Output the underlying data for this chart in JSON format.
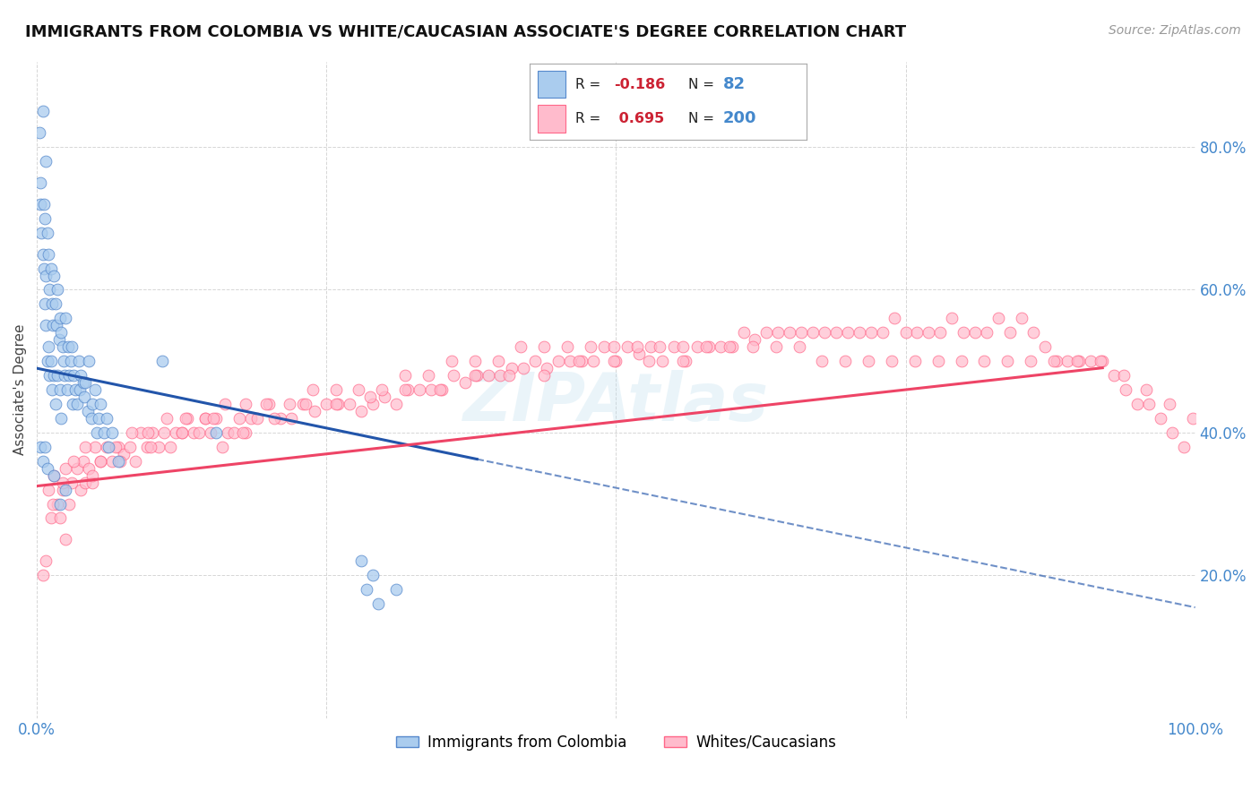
{
  "title": "IMMIGRANTS FROM COLOMBIA VS WHITE/CAUCASIAN ASSOCIATE'S DEGREE CORRELATION CHART",
  "source": "Source: ZipAtlas.com",
  "ylabel": "Associate's Degree",
  "watermark": "ZIPAtlas",
  "blue_color": "#5588CC",
  "blue_fill": "#AACCEE",
  "pink_color": "#FF6688",
  "pink_fill": "#FFBBCC",
  "trend_blue": "#2255AA",
  "trend_pink": "#EE4466",
  "r_blue": -0.186,
  "r_pink": 0.695,
  "n_blue": 82,
  "n_pink": 200,
  "blue_scatter_x": [
    0.002,
    0.003,
    0.003,
    0.004,
    0.005,
    0.005,
    0.006,
    0.006,
    0.007,
    0.007,
    0.008,
    0.008,
    0.008,
    0.009,
    0.009,
    0.01,
    0.01,
    0.011,
    0.011,
    0.012,
    0.012,
    0.013,
    0.013,
    0.014,
    0.015,
    0.015,
    0.016,
    0.016,
    0.017,
    0.018,
    0.018,
    0.019,
    0.02,
    0.02,
    0.021,
    0.021,
    0.022,
    0.023,
    0.024,
    0.025,
    0.026,
    0.027,
    0.028,
    0.029,
    0.03,
    0.031,
    0.032,
    0.033,
    0.035,
    0.036,
    0.037,
    0.038,
    0.04,
    0.041,
    0.042,
    0.044,
    0.045,
    0.047,
    0.048,
    0.05,
    0.052,
    0.053,
    0.055,
    0.058,
    0.06,
    0.062,
    0.065,
    0.07,
    0.108,
    0.155,
    0.003,
    0.005,
    0.007,
    0.009,
    0.015,
    0.02,
    0.025,
    0.28,
    0.29,
    0.31,
    0.285,
    0.295
  ],
  "blue_scatter_y": [
    0.82,
    0.75,
    0.72,
    0.68,
    0.85,
    0.65,
    0.72,
    0.63,
    0.7,
    0.58,
    0.78,
    0.62,
    0.55,
    0.68,
    0.5,
    0.65,
    0.52,
    0.6,
    0.48,
    0.63,
    0.5,
    0.58,
    0.46,
    0.55,
    0.62,
    0.48,
    0.58,
    0.44,
    0.55,
    0.6,
    0.48,
    0.53,
    0.56,
    0.46,
    0.54,
    0.42,
    0.52,
    0.5,
    0.48,
    0.56,
    0.46,
    0.52,
    0.48,
    0.5,
    0.52,
    0.44,
    0.48,
    0.46,
    0.44,
    0.5,
    0.46,
    0.48,
    0.47,
    0.45,
    0.47,
    0.43,
    0.5,
    0.42,
    0.44,
    0.46,
    0.4,
    0.42,
    0.44,
    0.4,
    0.42,
    0.38,
    0.4,
    0.36,
    0.5,
    0.4,
    0.38,
    0.36,
    0.38,
    0.35,
    0.34,
    0.3,
    0.32,
    0.22,
    0.2,
    0.18,
    0.18,
    0.16
  ],
  "pink_scatter_x": [
    0.005,
    0.01,
    0.012,
    0.015,
    0.018,
    0.02,
    0.022,
    0.025,
    0.028,
    0.03,
    0.035,
    0.038,
    0.04,
    0.042,
    0.045,
    0.048,
    0.05,
    0.055,
    0.06,
    0.065,
    0.07,
    0.075,
    0.08,
    0.085,
    0.09,
    0.095,
    0.1,
    0.105,
    0.11,
    0.115,
    0.12,
    0.125,
    0.13,
    0.135,
    0.14,
    0.145,
    0.15,
    0.155,
    0.16,
    0.165,
    0.17,
    0.175,
    0.18,
    0.185,
    0.19,
    0.2,
    0.21,
    0.22,
    0.23,
    0.24,
    0.25,
    0.26,
    0.27,
    0.28,
    0.29,
    0.3,
    0.31,
    0.32,
    0.33,
    0.34,
    0.35,
    0.36,
    0.37,
    0.38,
    0.39,
    0.4,
    0.41,
    0.42,
    0.43,
    0.44,
    0.45,
    0.46,
    0.47,
    0.48,
    0.49,
    0.5,
    0.51,
    0.52,
    0.53,
    0.54,
    0.55,
    0.56,
    0.57,
    0.58,
    0.59,
    0.6,
    0.61,
    0.62,
    0.63,
    0.64,
    0.65,
    0.66,
    0.67,
    0.68,
    0.69,
    0.7,
    0.71,
    0.72,
    0.73,
    0.74,
    0.75,
    0.76,
    0.77,
    0.78,
    0.79,
    0.8,
    0.81,
    0.82,
    0.83,
    0.84,
    0.85,
    0.86,
    0.87,
    0.88,
    0.89,
    0.9,
    0.91,
    0.92,
    0.93,
    0.94,
    0.95,
    0.96,
    0.97,
    0.98,
    0.99,
    0.008,
    0.014,
    0.022,
    0.032,
    0.042,
    0.055,
    0.068,
    0.082,
    0.096,
    0.112,
    0.128,
    0.145,
    0.162,
    0.18,
    0.198,
    0.218,
    0.238,
    0.258,
    0.278,
    0.298,
    0.318,
    0.338,
    0.358,
    0.378,
    0.398,
    0.418,
    0.438,
    0.458,
    0.478,
    0.498,
    0.518,
    0.538,
    0.558,
    0.578,
    0.598,
    0.618,
    0.638,
    0.658,
    0.678,
    0.698,
    0.718,
    0.738,
    0.758,
    0.778,
    0.798,
    0.818,
    0.838,
    0.858,
    0.878,
    0.898,
    0.918,
    0.938,
    0.958,
    0.978,
    0.998,
    0.025,
    0.048,
    0.072,
    0.098,
    0.125,
    0.152,
    0.178,
    0.205,
    0.232,
    0.258,
    0.288,
    0.318,
    0.348,
    0.378,
    0.408,
    0.438,
    0.468,
    0.498,
    0.528,
    0.558
  ],
  "pink_scatter_y": [
    0.2,
    0.32,
    0.28,
    0.34,
    0.3,
    0.28,
    0.32,
    0.35,
    0.3,
    0.33,
    0.35,
    0.32,
    0.36,
    0.33,
    0.35,
    0.33,
    0.38,
    0.36,
    0.38,
    0.36,
    0.38,
    0.37,
    0.38,
    0.36,
    0.4,
    0.38,
    0.4,
    0.38,
    0.4,
    0.38,
    0.4,
    0.4,
    0.42,
    0.4,
    0.4,
    0.42,
    0.4,
    0.42,
    0.38,
    0.4,
    0.4,
    0.42,
    0.4,
    0.42,
    0.42,
    0.44,
    0.42,
    0.42,
    0.44,
    0.43,
    0.44,
    0.44,
    0.44,
    0.43,
    0.44,
    0.45,
    0.44,
    0.46,
    0.46,
    0.46,
    0.46,
    0.48,
    0.47,
    0.48,
    0.48,
    0.48,
    0.49,
    0.49,
    0.5,
    0.49,
    0.5,
    0.5,
    0.5,
    0.5,
    0.52,
    0.5,
    0.52,
    0.51,
    0.52,
    0.5,
    0.52,
    0.5,
    0.52,
    0.52,
    0.52,
    0.52,
    0.54,
    0.53,
    0.54,
    0.54,
    0.54,
    0.54,
    0.54,
    0.54,
    0.54,
    0.54,
    0.54,
    0.54,
    0.54,
    0.56,
    0.54,
    0.54,
    0.54,
    0.54,
    0.56,
    0.54,
    0.54,
    0.54,
    0.56,
    0.54,
    0.56,
    0.54,
    0.52,
    0.5,
    0.5,
    0.5,
    0.5,
    0.5,
    0.48,
    0.46,
    0.44,
    0.44,
    0.42,
    0.4,
    0.38,
    0.22,
    0.3,
    0.33,
    0.36,
    0.38,
    0.36,
    0.38,
    0.4,
    0.4,
    0.42,
    0.42,
    0.42,
    0.44,
    0.44,
    0.44,
    0.44,
    0.46,
    0.46,
    0.46,
    0.46,
    0.48,
    0.48,
    0.5,
    0.5,
    0.5,
    0.52,
    0.52,
    0.52,
    0.52,
    0.52,
    0.52,
    0.52,
    0.52,
    0.52,
    0.52,
    0.52,
    0.52,
    0.52,
    0.5,
    0.5,
    0.5,
    0.5,
    0.5,
    0.5,
    0.5,
    0.5,
    0.5,
    0.5,
    0.5,
    0.5,
    0.5,
    0.48,
    0.46,
    0.44,
    0.42,
    0.25,
    0.34,
    0.36,
    0.38,
    0.4,
    0.42,
    0.4,
    0.42,
    0.44,
    0.44,
    0.45,
    0.46,
    0.46,
    0.48,
    0.48,
    0.48,
    0.5,
    0.5,
    0.5,
    0.5
  ],
  "blue_trend_x0": 0.0,
  "blue_trend_x1": 1.0,
  "blue_trend_y0": 0.49,
  "blue_trend_y1": 0.155,
  "pink_trend_x0": 0.0,
  "pink_trend_x1": 1.0,
  "pink_trend_y0": 0.325,
  "pink_trend_y1": 0.505,
  "ylim": [
    0.0,
    0.92
  ],
  "xlim": [
    0.0,
    1.0
  ],
  "yticks": [
    0.0,
    0.2,
    0.4,
    0.6,
    0.8
  ],
  "ytick_labels": [
    "",
    "20.0%",
    "40.0%",
    "60.0%",
    "80.0%"
  ],
  "xticks": [
    0.0,
    0.25,
    0.5,
    0.75,
    1.0
  ],
  "xtick_labels": [
    "0.0%",
    "",
    "",
    "",
    "100.0%"
  ],
  "background_color": "#ffffff",
  "grid_color": "#cccccc",
  "title_fontsize": 13,
  "axis_label_color": "#4488CC",
  "ylabel_color": "#444444"
}
